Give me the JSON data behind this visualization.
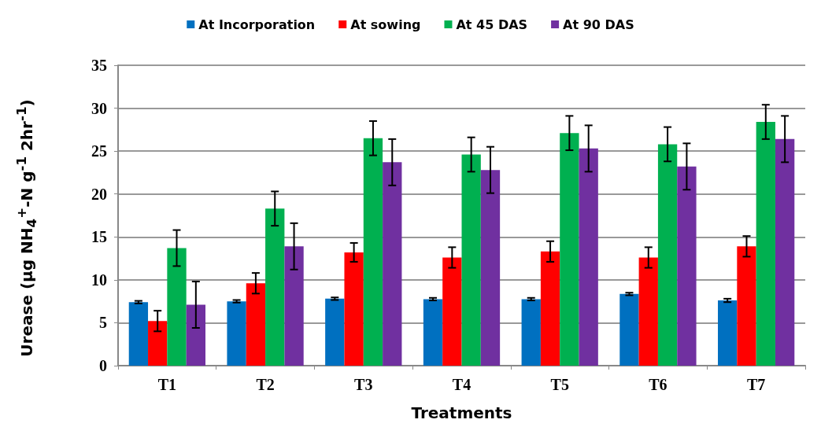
{
  "chart_data": {
    "type": "bar",
    "xlabel": "Treatments",
    "ylabel": "Urease (µg NH$_{4}$$^{+}$-N g$^{-1}$ 2hr$^{-1}$)",
    "categories": [
      "T1",
      "T2",
      "T3",
      "T4",
      "T5",
      "T6",
      "T7"
    ],
    "series": [
      {
        "name": "At Incorporation",
        "color": "#0070c0",
        "values": [
          7.4,
          7.5,
          7.8,
          7.75,
          7.75,
          8.35,
          7.6
        ],
        "errors": [
          0.15,
          0.15,
          0.15,
          0.15,
          0.15,
          0.15,
          0.2
        ]
      },
      {
        "name": "At sowing",
        "color": "#ff0000",
        "values": [
          5.2,
          9.6,
          13.2,
          12.6,
          13.3,
          12.6,
          13.9
        ],
        "errors": [
          1.2,
          1.2,
          1.1,
          1.2,
          1.2,
          1.2,
          1.2
        ]
      },
      {
        "name": "At 45 DAS",
        "color": "#00b050",
        "values": [
          13.7,
          18.3,
          26.5,
          24.6,
          27.1,
          25.8,
          28.4
        ],
        "errors": [
          2.1,
          2.0,
          2.0,
          2.0,
          2.0,
          2.0,
          2.0
        ]
      },
      {
        "name": "At 90 DAS",
        "color": "#7030a0",
        "values": [
          7.1,
          13.9,
          23.7,
          22.8,
          25.3,
          23.2,
          26.4
        ],
        "errors": [
          2.7,
          2.7,
          2.7,
          2.7,
          2.7,
          2.7,
          2.7
        ]
      }
    ],
    "ylim": [
      0,
      35
    ],
    "yticks": [
      0,
      5,
      10,
      15,
      20,
      25,
      30,
      35
    ],
    "grid": "y",
    "legend": "top"
  }
}
